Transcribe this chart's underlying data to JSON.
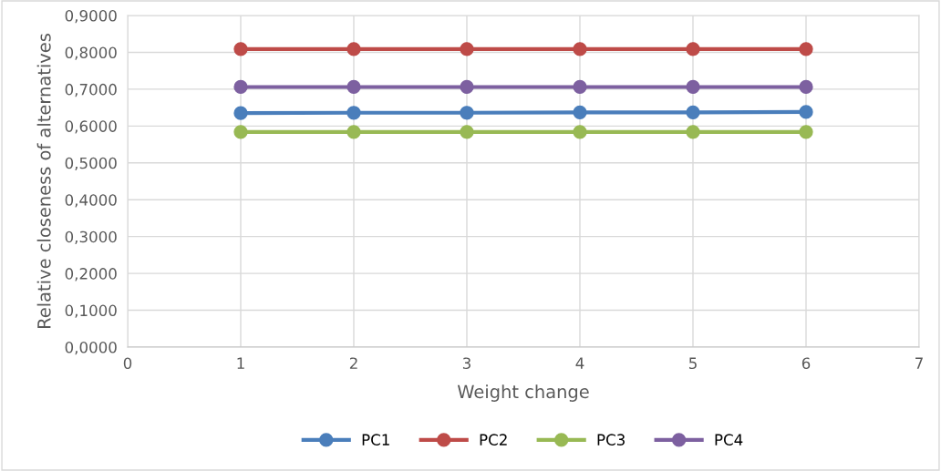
{
  "chart_data": {
    "type": "line",
    "xlabel": "Weight change",
    "ylabel": "Relative closeness of alternatives",
    "x": [
      1,
      2,
      3,
      4,
      5,
      6
    ],
    "series": [
      {
        "name": "PC1",
        "color": "#4a7ebb",
        "values": [
          0.635,
          0.636,
          0.636,
          0.637,
          0.637,
          0.638
        ]
      },
      {
        "name": "PC2",
        "color": "#be4b48",
        "values": [
          0.809,
          0.809,
          0.809,
          0.809,
          0.809,
          0.809
        ]
      },
      {
        "name": "PC3",
        "color": "#98b954",
        "values": [
          0.584,
          0.584,
          0.584,
          0.584,
          0.584,
          0.584
        ]
      },
      {
        "name": "PC4",
        "color": "#7d60a0",
        "values": [
          0.706,
          0.706,
          0.706,
          0.706,
          0.706,
          0.706
        ]
      }
    ],
    "xlim": [
      0,
      7
    ],
    "xticks": [
      0,
      1,
      2,
      3,
      4,
      5,
      6,
      7
    ],
    "ylim": [
      0,
      0.9
    ],
    "yticks": [
      {
        "value": 0,
        "label": "0,0000"
      },
      {
        "value": 0.1,
        "label": "0,1000"
      },
      {
        "value": 0.2,
        "label": "0,2000"
      },
      {
        "value": 0.3,
        "label": "0,3000"
      },
      {
        "value": 0.4,
        "label": "0,4000"
      },
      {
        "value": 0.5,
        "label": "0,5000"
      },
      {
        "value": 0.6,
        "label": "0,6000"
      },
      {
        "value": 0.7,
        "label": "0,7000"
      },
      {
        "value": 0.8,
        "label": "0,8000"
      },
      {
        "value": 0.9,
        "label": "0,9000"
      }
    ],
    "grid": true,
    "legend": "bottom",
    "marker": "circle",
    "line_style": "solid"
  }
}
